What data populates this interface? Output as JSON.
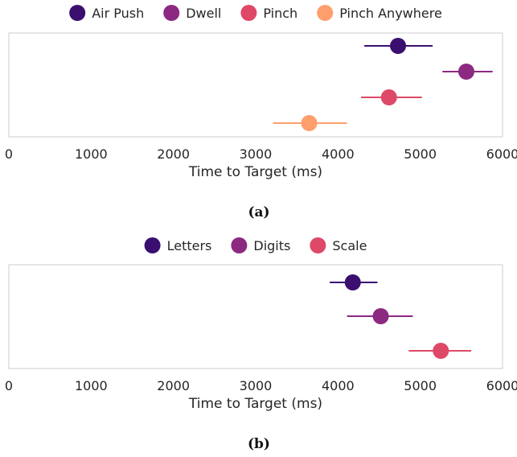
{
  "chart_data": [
    {
      "type": "scatter",
      "subplot": "(a)",
      "xlabel": "Time to Target (ms)",
      "xlim": [
        0,
        6000
      ],
      "xticks": [
        "0",
        "1000",
        "2000",
        "3000",
        "4000",
        "5000",
        "6000"
      ],
      "legend_position": "top-center",
      "grid": false,
      "series": [
        {
          "name": "Air Push",
          "mean": 4730,
          "ci": [
            4320,
            5150
          ],
          "color": "#3b0f70"
        },
        {
          "name": "Dwell",
          "mean": 5560,
          "ci": [
            5270,
            5880
          ],
          "color": "#8c2981"
        },
        {
          "name": "Pinch",
          "mean": 4620,
          "ci": [
            4280,
            5020
          ],
          "color": "#de4968"
        },
        {
          "name": "Pinch Anywhere",
          "mean": 3650,
          "ci": [
            3210,
            4110
          ],
          "color": "#fe9f6d"
        }
      ]
    },
    {
      "type": "scatter",
      "subplot": "(b)",
      "xlabel": "Time to Target (ms)",
      "xlim": [
        0,
        6000
      ],
      "xticks": [
        "0",
        "1000",
        "2000",
        "3000",
        "4000",
        "5000",
        "6000"
      ],
      "legend_position": "top-center",
      "grid": false,
      "series": [
        {
          "name": "Letters",
          "mean": 4180,
          "ci": [
            3900,
            4480
          ],
          "color": "#3b0f70"
        },
        {
          "name": "Digits",
          "mean": 4520,
          "ci": [
            4110,
            4910
          ],
          "color": "#8c2981"
        },
        {
          "name": "Scale",
          "mean": 5250,
          "ci": [
            4860,
            5620
          ],
          "color": "#de4968"
        }
      ]
    }
  ]
}
